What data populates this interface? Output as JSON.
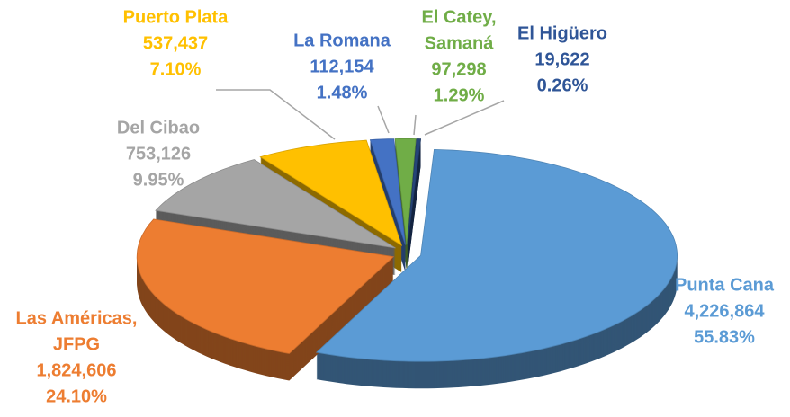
{
  "chart_data": {
    "type": "pie",
    "categories": [
      [
        "Punta Cana"
      ],
      [
        "Las Américas,",
        "JFPG"
      ],
      [
        "Del Cibao"
      ],
      [
        "Puerto Plata"
      ],
      [
        "La Romana"
      ],
      [
        "El Catey,",
        "Samaná"
      ],
      [
        "El Higüero"
      ]
    ],
    "values": [
      4226864,
      1824606,
      753126,
      537437,
      112154,
      97298,
      19622
    ],
    "value_labels": [
      "4,226,864",
      "1,824,606",
      "753,126",
      "537,437",
      "112,154",
      "97,298",
      "19,622"
    ],
    "percentages": [
      {
        "value": 55.83,
        "label": "55.83%"
      },
      {
        "value": 24.1,
        "label": "24.10%"
      },
      {
        "value": 9.95,
        "label": "9.95%"
      },
      {
        "value": 7.1,
        "label": "7.10%"
      },
      {
        "value": 1.48,
        "label": "1.48%"
      },
      {
        "value": 1.29,
        "label": "1.29%"
      },
      {
        "value": 0.26,
        "label": "0.26%"
      }
    ],
    "colors": [
      "#5b9bd5",
      "#ed7d31",
      "#a5a5a5",
      "#ffc000",
      "#4472c4",
      "#70ad47",
      "#264478"
    ],
    "label_colors": [
      "#5b9bd5",
      "#ed7d31",
      "#a5a5a5",
      "#ffc000",
      "#4472c4",
      "#70ad47",
      "#2f5597"
    ]
  }
}
